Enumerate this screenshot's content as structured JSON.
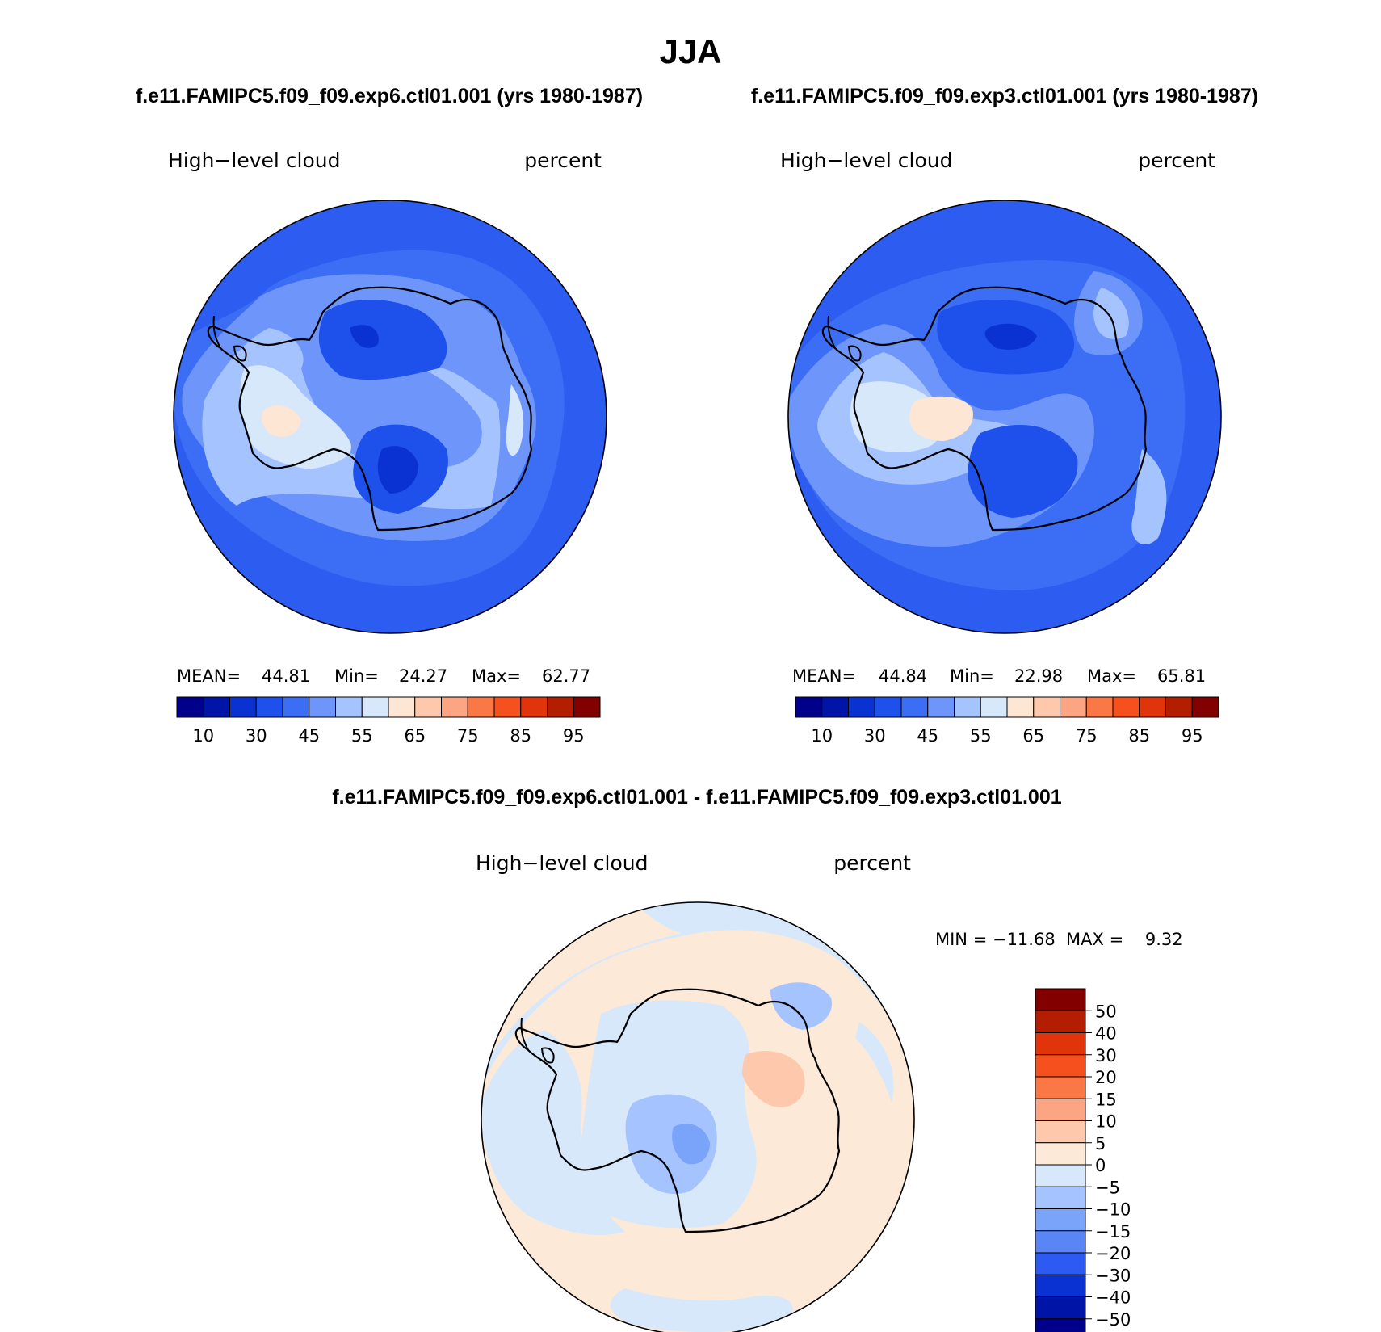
{
  "page": {
    "title": "JJA",
    "difference_title": "f.e11.FAMIPC5.f09_f09.exp6.ctl01.001 - f.e11.FAMIPC5.f09_f09.exp3.ctl01.001"
  },
  "panels": [
    {
      "case_title": "f.e11.FAMIPC5.f09_f09.exp6.ctl01.001 (yrs 1980-1987)",
      "variable": "High−level cloud",
      "units": "percent",
      "stats": {
        "mean_label": "MEAN=",
        "mean": "44.81",
        "min_label": "Min=",
        "min": "24.27",
        "max_label": "Max=",
        "max": "62.77"
      }
    },
    {
      "case_title": "f.e11.FAMIPC5.f09_f09.exp3.ctl01.001 (yrs 1980-1987)",
      "variable": "High−level cloud",
      "units": "percent",
      "stats": {
        "mean_label": "MEAN=",
        "mean": "44.84",
        "min_label": "Min=",
        "min": "22.98",
        "max_label": "Max=",
        "max": "65.81"
      }
    }
  ],
  "difference_panel": {
    "variable": "High−level cloud",
    "units": "percent",
    "stats_text": "MIN = −11.68  MAX =    9.32"
  },
  "colorbar_top": {
    "colors": [
      "#00008b",
      "#0014a8",
      "#0a32d2",
      "#1e50eb",
      "#3c6ef5",
      "#6e96fa",
      "#a5c3ff",
      "#d7e8fa",
      "#fde6d4",
      "#fdc8ab",
      "#fca582",
      "#fa7846",
      "#f5501e",
      "#e1340a",
      "#b41e00",
      "#820000"
    ],
    "tick_labels": [
      "10",
      "30",
      "45",
      "55",
      "65",
      "75",
      "85",
      "95"
    ]
  },
  "colorbar_diff": {
    "colors": [
      "#820000",
      "#b41e00",
      "#e1340a",
      "#f5501e",
      "#fa7846",
      "#fca582",
      "#fdc8ab",
      "#fde9d7",
      "#d7e8fa",
      "#a5c3ff",
      "#7aa4fa",
      "#5a86f5",
      "#2d5af0",
      "#0a32d2",
      "#0014a8",
      "#00008b"
    ],
    "tick_labels": [
      "50",
      "40",
      "30",
      "20",
      "15",
      "10",
      "5",
      "0",
      "−5",
      "−10",
      "−15",
      "−20",
      "−30",
      "−40",
      "−50"
    ]
  }
}
